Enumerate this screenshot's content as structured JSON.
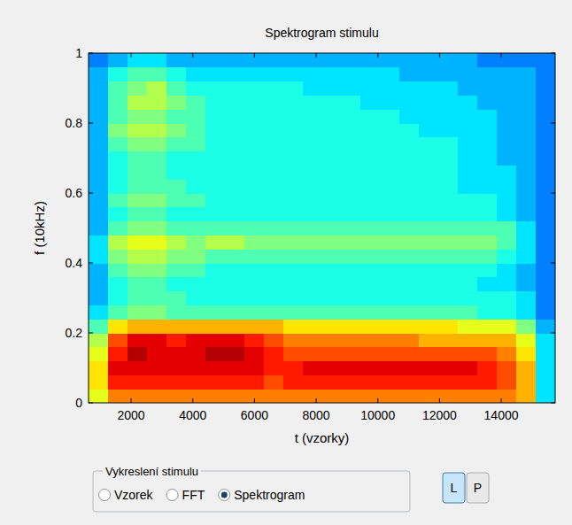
{
  "chart_data": {
    "type": "heatmap",
    "title": "Spektrogram stimulu",
    "x_label": "t (vzorky)",
    "y_label": "f (10kHz)",
    "xlim": [
      620,
      15750
    ],
    "ylim": [
      0,
      1
    ],
    "xticks": [
      2000,
      4000,
      6000,
      8000,
      10000,
      12000,
      14000
    ],
    "yticks": [
      0,
      0.2,
      0.4,
      0.6,
      0.8,
      1
    ],
    "grid": false,
    "color_range": [
      0,
      10
    ],
    "cells": [
      [
        6,
        7.5,
        7.5,
        7.5,
        7.5,
        7.5,
        7.5,
        7.5,
        7.5,
        7.5,
        7.5,
        7.5,
        7.5,
        7.5,
        7.5,
        7.5,
        7.5,
        7.5,
        7.5,
        7.5,
        7.5,
        7.5,
        7,
        3.5
      ],
      [
        6.5,
        8.5,
        8.5,
        8.5,
        8.5,
        8.5,
        8.5,
        8.5,
        8.5,
        8,
        8.5,
        8.5,
        8.5,
        8.5,
        8.5,
        8.5,
        8.5,
        8.5,
        8.5,
        8.5,
        8.5,
        8,
        7,
        3.5
      ],
      [
        6.5,
        9,
        9,
        9,
        9,
        9,
        9,
        9,
        9,
        8.5,
        8.5,
        9,
        9,
        9,
        9,
        9,
        9,
        9,
        9,
        9,
        8.5,
        8,
        7,
        3.5
      ],
      [
        6,
        8.5,
        9.5,
        9,
        9,
        9,
        9.5,
        9.5,
        9,
        8.5,
        8,
        8,
        8,
        8,
        8,
        8,
        8,
        8,
        8,
        8,
        8,
        7.5,
        6.5,
        3.5
      ],
      [
        5.5,
        8,
        9,
        9,
        8.5,
        9,
        9,
        9,
        8.5,
        8,
        7.5,
        7.5,
        7.5,
        7.5,
        7.5,
        7.5,
        7.5,
        7,
        7,
        7,
        7,
        7,
        6,
        3.5
      ],
      [
        4.5,
        6.5,
        7,
        7,
        7,
        7,
        7,
        7,
        7,
        7,
        6.5,
        6.5,
        6.5,
        6.5,
        6.5,
        6.5,
        6.5,
        6.5,
        6.5,
        6,
        6,
        6,
        5,
        3
      ],
      [
        3.5,
        4.5,
        5,
        5,
        4.5,
        4.5,
        4.5,
        4.5,
        4.5,
        4.5,
        4.5,
        4.5,
        4.5,
        4.5,
        4.5,
        4.5,
        4.5,
        4.5,
        4.5,
        4.5,
        4,
        4,
        3.5,
        2.5
      ],
      [
        3,
        4,
        4.5,
        4.5,
        4.5,
        4,
        4,
        4,
        4,
        4,
        4,
        4,
        4,
        4,
        4,
        4,
        4,
        4,
        4,
        4,
        4,
        4,
        3.5,
        2.5
      ],
      [
        3,
        4,
        4.5,
        4.5,
        4,
        4,
        4,
        4,
        4,
        4,
        4,
        4,
        4,
        4,
        4,
        4,
        4,
        4,
        4,
        4,
        3.5,
        3.5,
        3,
        2.5
      ],
      [
        3,
        4.5,
        5,
        5,
        4.5,
        4.5,
        4,
        4,
        4,
        4,
        4,
        4,
        4,
        4,
        4,
        4,
        4,
        4,
        4,
        4,
        4,
        3.5,
        3,
        2.5
      ],
      [
        3.5,
        5,
        5.5,
        5.5,
        5,
        5,
        4.5,
        4.5,
        4.5,
        4.5,
        4.5,
        4.5,
        4.5,
        4.5,
        4.5,
        4.5,
        4.5,
        4.5,
        4.5,
        4.5,
        4.5,
        4,
        3.5,
        2.5
      ],
      [
        3.5,
        5.5,
        6,
        6,
        5.5,
        5,
        5.5,
        5.5,
        5,
        5,
        5,
        5,
        5,
        5,
        5,
        5,
        5,
        5,
        5,
        5,
        5,
        4.5,
        3.5,
        2.5
      ],
      [
        3,
        4.5,
        5,
        5,
        4.5,
        4.5,
        4.5,
        4.5,
        4.5,
        4.5,
        4.5,
        4.5,
        4.5,
        4.5,
        4.5,
        4.5,
        4.5,
        4.5,
        4.5,
        4.5,
        4.5,
        4.5,
        3.5,
        2.5
      ],
      [
        3,
        4,
        4.5,
        4.5,
        4,
        4,
        4,
        4,
        4,
        4,
        4,
        4,
        4,
        4,
        4,
        4,
        4,
        4,
        4,
        4,
        4,
        3.5,
        3,
        2.5
      ],
      [
        3,
        4.5,
        5,
        5,
        4.5,
        4.5,
        4,
        4,
        4,
        4,
        4,
        4,
        4,
        4,
        4,
        4,
        4,
        4,
        4,
        4,
        4,
        3.5,
        3,
        2.5
      ],
      [
        3,
        4,
        4.5,
        4.5,
        4.5,
        4,
        4,
        4,
        4,
        4,
        4,
        4,
        4,
        4,
        4,
        4,
        4,
        4,
        4,
        3.5,
        3.5,
        3.5,
        3,
        2.5
      ],
      [
        3,
        4,
        4.5,
        4.5,
        4,
        4,
        4,
        4,
        4,
        4,
        4,
        4,
        4,
        4,
        4,
        4,
        4,
        4,
        4,
        3.5,
        3.5,
        3.5,
        3,
        2.5
      ],
      [
        3,
        4,
        4.5,
        4.5,
        4,
        4,
        4,
        4,
        4,
        4,
        4,
        4,
        4,
        4,
        4,
        4,
        4,
        4,
        4,
        3.5,
        3.5,
        3,
        3,
        2.5
      ],
      [
        3,
        4.5,
        5,
        5,
        4.5,
        4.5,
        4,
        4,
        4,
        4,
        4,
        4,
        4,
        4,
        4,
        4,
        4,
        4,
        4,
        3.5,
        3.5,
        3,
        3,
        2.5
      ],
      [
        3,
        5,
        5.5,
        5.5,
        5,
        4.5,
        4,
        4,
        4,
        4,
        4,
        4,
        4,
        4,
        4,
        4,
        4,
        3.5,
        3.5,
        3.5,
        3.5,
        3,
        3,
        2.5
      ],
      [
        3,
        4.5,
        5,
        5,
        4.5,
        4.5,
        4,
        4,
        4,
        4,
        4,
        4,
        4,
        4,
        4,
        4,
        3.5,
        3.5,
        3.5,
        3.5,
        3.5,
        3,
        3,
        2.5
      ],
      [
        3,
        4.5,
        5.5,
        5.5,
        5,
        4.5,
        4,
        4,
        4,
        4,
        4,
        4,
        4,
        4,
        3.5,
        3.5,
        3.5,
        3.5,
        3.5,
        3.5,
        3,
        3,
        3,
        2.5
      ],
      [
        3,
        4.5,
        5,
        5.5,
        4.5,
        4,
        4,
        4,
        4,
        4,
        4,
        3.5,
        3.5,
        3.5,
        3.5,
        3.5,
        3.5,
        3.5,
        3.5,
        3,
        3,
        3,
        3,
        2.5
      ],
      [
        3,
        4,
        4.5,
        4.5,
        4,
        3.5,
        3.5,
        3.5,
        3.5,
        3.5,
        3.5,
        3.5,
        3.5,
        3.5,
        3.5,
        3.5,
        3,
        3,
        3,
        3,
        3,
        3,
        3,
        2.5
      ],
      [
        2.5,
        3,
        3.5,
        3.5,
        3,
        3,
        3,
        3,
        3,
        3,
        3,
        3,
        3,
        3,
        3,
        3,
        3,
        3,
        3,
        3,
        2.5,
        2.5,
        2.5,
        2.5
      ]
    ]
  },
  "panel": {
    "title": "Vykreslení stimulu",
    "options": [
      "Vzorek",
      "FFT",
      "Spektrogram"
    ],
    "selected": 2,
    "buttons": [
      "L",
      "P"
    ],
    "active_button": 0
  }
}
